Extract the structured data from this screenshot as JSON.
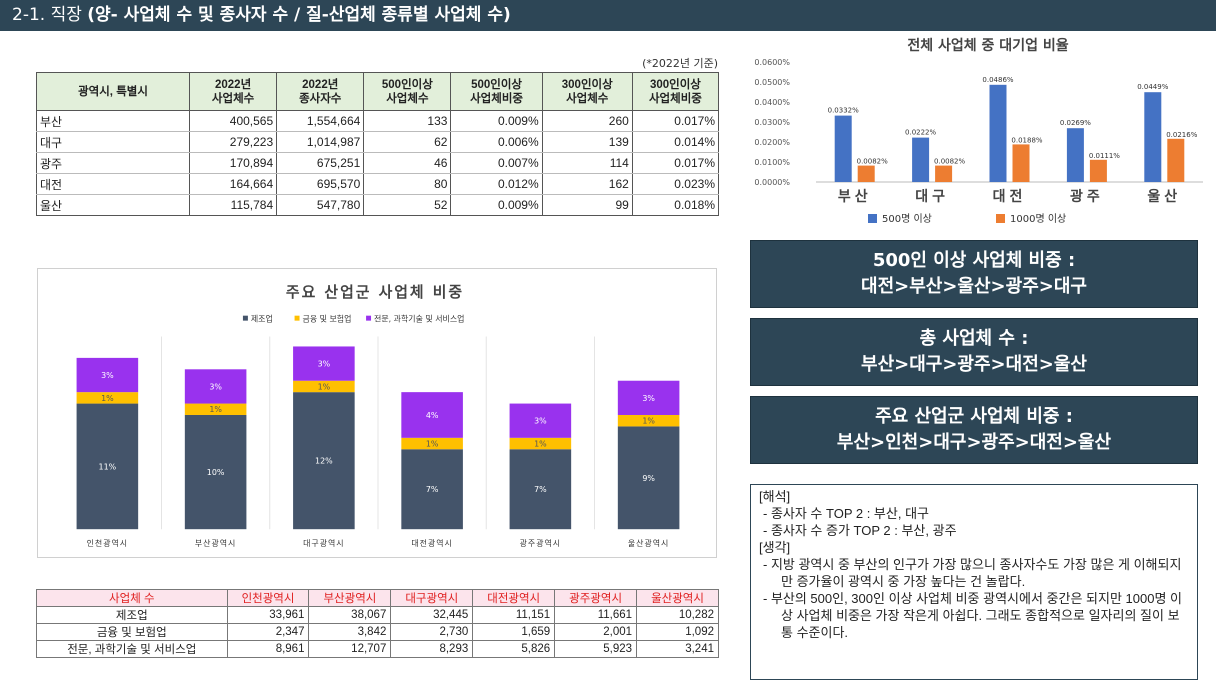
{
  "header": {
    "prefix": "2-1. 직장 ",
    "title": "(양- 사업체 수 및 종사자 수 / 질-산업체 종류별 사업체 수)"
  },
  "table1": {
    "note": "(*2022년 기준)",
    "columns": [
      [
        "광역시, 특별시"
      ],
      [
        "2022년",
        "사업체수"
      ],
      [
        "2022년",
        "종사자수"
      ],
      [
        "500인이상",
        "사업체수"
      ],
      [
        "500인이상",
        "사업체비중"
      ],
      [
        "300인이상",
        "사업체수"
      ],
      [
        "300인이상",
        "사업체비중"
      ]
    ],
    "rows": [
      [
        "부산",
        "400,565",
        "1,554,664",
        "133",
        "0.009%",
        "260",
        "0.017%"
      ],
      [
        "대구",
        "279,223",
        "1,014,987",
        "62",
        "0.006%",
        "139",
        "0.014%"
      ],
      [
        "광주",
        "170,894",
        "675,251",
        "46",
        "0.007%",
        "114",
        "0.017%"
      ],
      [
        "대전",
        "164,664",
        "695,570",
        "80",
        "0.012%",
        "162",
        "0.023%"
      ],
      [
        "울산",
        "115,784",
        "547,780",
        "52",
        "0.009%",
        "99",
        "0.018%"
      ]
    ]
  },
  "chart_data": [
    {
      "type": "bar",
      "title": "전체 사업체 중 대기업 비율",
      "categories": [
        "부산",
        "대구",
        "대전",
        "광주",
        "울산"
      ],
      "series": [
        {
          "name": "500명 이상",
          "color": "#4472c4",
          "values": [
            0.0332,
            0.0222,
            0.0486,
            0.0269,
            0.0449
          ],
          "labels": [
            "0.0332%",
            "0.0222%",
            "0.0486%",
            "0.0269%",
            "0.0449%"
          ]
        },
        {
          "name": "1000명 이상",
          "color": "#ed7d31",
          "values": [
            0.0082,
            0.0082,
            0.0188,
            0.0111,
            0.0216
          ],
          "labels": [
            "0.0082%",
            "0.0082%",
            "0.0188%",
            "0.0111%",
            "0.0216%"
          ]
        }
      ],
      "yticks": [
        "0.0000%",
        "0.0100%",
        "0.0200%",
        "0.0300%",
        "0.0400%",
        "0.0500%",
        "0.0600%"
      ],
      "ylim": [
        0,
        0.06
      ],
      "legend": "bottom",
      "grid": false
    },
    {
      "type": "bar",
      "stacked": true,
      "title": "주요 산업군 사업체 비중",
      "categories": [
        "인천광역시",
        "부산광역시",
        "대구광역시",
        "대전광역시",
        "광주광역시",
        "울산광역시"
      ],
      "series": [
        {
          "name": "제조업",
          "color": "#44546a",
          "values": [
            11,
            10,
            12,
            7,
            7,
            9
          ],
          "labels": [
            "11%",
            "10%",
            "12%",
            "7%",
            "7%",
            "9%"
          ]
        },
        {
          "name": "금융 및 보험업",
          "color": "#ffc000",
          "values": [
            1,
            1,
            1,
            1,
            1,
            1
          ],
          "labels": [
            "1%",
            "1%",
            "1%",
            "1%",
            "1%",
            "1%"
          ]
        },
        {
          "name": "전문, 과학기술 및 서비스업",
          "color": "#9932ee",
          "values": [
            3,
            3,
            3,
            4,
            3,
            3
          ],
          "labels": [
            "3%",
            "3%",
            "3%",
            "4%",
            "3%",
            "3%"
          ]
        }
      ],
      "legend": "top",
      "grid": false
    }
  ],
  "boxes": [
    {
      "line1": "500인 이상 사업체 비중 :",
      "line2": "대전>부산>울산>광주>대구"
    },
    {
      "line1": "총 사업체 수 :",
      "line2": "부산>대구>광주>대전>울산"
    },
    {
      "line1": "주요 산업군 사업체 비중 :",
      "line2": "부산>인천>대구>광주>대전>울산"
    }
  ],
  "table2": {
    "header": [
      "사업체 수",
      "인천광역시",
      "부산광역시",
      "대구광역시",
      "대전광역시",
      "광주광역시",
      "울산광역시"
    ],
    "rows": [
      [
        "제조업",
        "33,961",
        "38,067",
        "32,445",
        "11,151",
        "11,661",
        "10,282"
      ],
      [
        "금융 및 보험업",
        "2,347",
        "3,842",
        "2,730",
        "1,659",
        "2,001",
        "1,092"
      ],
      [
        "전문, 과학기술 및 서비스업",
        "8,961",
        "12,707",
        "8,293",
        "5,826",
        "5,923",
        "3,241"
      ]
    ]
  },
  "notes": {
    "h1": "[해석]",
    "i1": "-   종사자 수 TOP 2 : 부산, 대구",
    "i2": "-   종사자 수 증가 TOP 2 : 부산, 광주",
    "h2": "[생각]",
    "i3": "-   지방 광역시 중 부산의 인구가 가장 많으니 종사자수도 가장 많은 게 이해되지만 증가율이 광역시 중 가장 높다는 건 놀랍다.",
    "i4": "-   부산의 500인, 300인 이상 사업체 비중 광역시에서 중간은 되지만 1000명 이상 사업체 비중은 가장 작은게 아쉽다. 그래도 종합적으로 일자리의 질이 보통 수준이다."
  }
}
